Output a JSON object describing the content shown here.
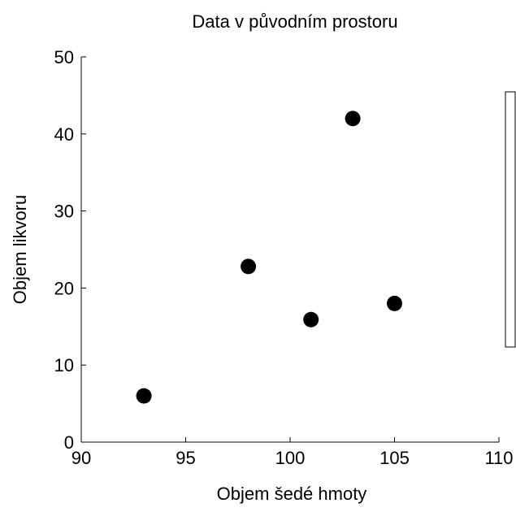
{
  "chart_data": {
    "type": "scatter",
    "title": "Data v původním prostoru",
    "xlabel": "Objem šedé hmoty",
    "ylabel": "Objem likvoru",
    "xlim": [
      90,
      110
    ],
    "ylim": [
      0,
      50
    ],
    "xticks": [
      90,
      95,
      100,
      105,
      110
    ],
    "yticks": [
      0,
      10,
      20,
      30,
      40,
      50
    ],
    "x_tick_labels": [
      "90",
      "95",
      "100",
      "105",
      "110"
    ],
    "y_tick_labels": [
      "0",
      "10",
      "20",
      "30",
      "40",
      "50"
    ],
    "grid": false,
    "legend": "right, empty box",
    "marker_color": "#000000",
    "points": [
      {
        "x": 93,
        "y": 6
      },
      {
        "x": 98,
        "y": 22.8
      },
      {
        "x": 101,
        "y": 15.9
      },
      {
        "x": 103,
        "y": 42
      },
      {
        "x": 105,
        "y": 18
      }
    ]
  }
}
